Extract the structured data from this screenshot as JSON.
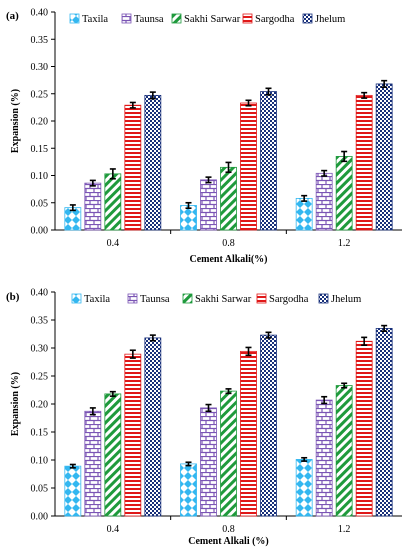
{
  "chart_data": [
    {
      "type": "bar",
      "panel_label": "(a)",
      "categories": [
        "0.4",
        "0.8",
        "1.2"
      ],
      "xlabel": "Cement Alkali(%)",
      "ylabel": "Expansion (%)",
      "ylim": [
        0,
        0.4
      ],
      "yticks": [
        "0.00",
        "0.05",
        "0.10",
        "0.15",
        "0.20",
        "0.25",
        "0.30",
        "0.35",
        "0.40"
      ],
      "grid": false,
      "legend_position": "top",
      "series": [
        {
          "name": "Taxila",
          "values": [
            0.041,
            0.045,
            0.058
          ],
          "errors": [
            0.005,
            0.005,
            0.005
          ],
          "color": "#33b7f0",
          "pattern": "diamond"
        },
        {
          "name": "Taunsa",
          "values": [
            0.086,
            0.092,
            0.104
          ],
          "errors": [
            0.005,
            0.005,
            0.005
          ],
          "color": "#7b55b5",
          "pattern": "brick"
        },
        {
          "name": "Sakhi Sarwar",
          "values": [
            0.103,
            0.115,
            0.135
          ],
          "errors": [
            0.009,
            0.009,
            0.009
          ],
          "color": "#1f9a3c",
          "pattern": "diagonal"
        },
        {
          "name": "Sargodha",
          "values": [
            0.229,
            0.233,
            0.247
          ],
          "errors": [
            0.005,
            0.005,
            0.005
          ],
          "color": "#e01818",
          "pattern": "horizontal"
        },
        {
          "name": "Jhelum",
          "values": [
            0.247,
            0.254,
            0.268
          ],
          "errors": [
            0.006,
            0.006,
            0.006
          ],
          "color": "#18307a",
          "pattern": "checker"
        }
      ]
    },
    {
      "type": "bar",
      "panel_label": "(b)",
      "categories": [
        "0.4",
        "0.8",
        "1.2"
      ],
      "xlabel": "Cement Alkali (%)",
      "ylabel": "Expansion (%)",
      "ylim": [
        0,
        0.4
      ],
      "yticks": [
        "0.00",
        "0.05",
        "0.10",
        "0.15",
        "0.20",
        "0.25",
        "0.30",
        "0.35",
        "0.40"
      ],
      "grid": false,
      "legend_position": "top",
      "series": [
        {
          "name": "Taxila",
          "values": [
            0.089,
            0.093,
            0.101
          ],
          "errors": [
            0.003,
            0.003,
            0.003
          ],
          "color": "#33b7f0",
          "pattern": "diamond"
        },
        {
          "name": "Taunsa",
          "values": [
            0.187,
            0.193,
            0.207
          ],
          "errors": [
            0.006,
            0.006,
            0.006
          ],
          "color": "#7b55b5",
          "pattern": "brick"
        },
        {
          "name": "Sakhi Sarwar",
          "values": [
            0.218,
            0.223,
            0.233
          ],
          "errors": [
            0.004,
            0.004,
            0.004
          ],
          "color": "#1f9a3c",
          "pattern": "diagonal"
        },
        {
          "name": "Sargodha",
          "values": [
            0.289,
            0.294,
            0.312
          ],
          "errors": [
            0.007,
            0.007,
            0.007
          ],
          "color": "#e01818",
          "pattern": "horizontal"
        },
        {
          "name": "Jhelum",
          "values": [
            0.318,
            0.323,
            0.335
          ],
          "errors": [
            0.005,
            0.005,
            0.005
          ],
          "color": "#18307a",
          "pattern": "checker"
        }
      ]
    }
  ]
}
